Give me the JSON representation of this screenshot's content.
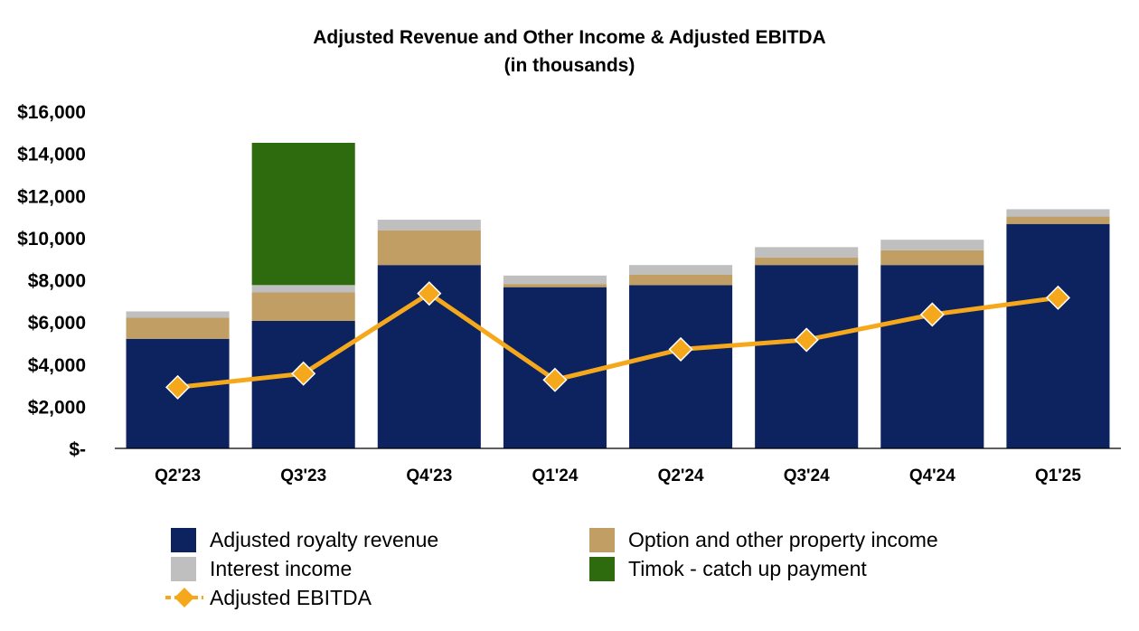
{
  "chart_data": {
    "type": "bar",
    "title": "Adjusted Revenue and Other Income & Adjusted EBITDA",
    "subtitle": "(in thousands)",
    "categories": [
      "Q2'23",
      "Q3'23",
      "Q4'23",
      "Q1'24",
      "Q2'24",
      "Q3'24",
      "Q4'24",
      "Q1'25"
    ],
    "ylim": [
      0,
      16000
    ],
    "yticks": [
      0,
      2000,
      4000,
      6000,
      8000,
      10000,
      12000,
      14000,
      16000
    ],
    "ytick_labels": [
      "$-",
      "$2,000",
      "$4,000",
      "$6,000",
      "$8,000",
      "$10,000",
      "$12,000",
      "$14,000",
      "$16,000"
    ],
    "grid": false,
    "legend_position": "bottom",
    "stacked": true,
    "series": [
      {
        "name": "Adjusted royalty revenue",
        "kind": "bar",
        "color": "#0d2360",
        "values": [
          5200,
          6050,
          8700,
          7650,
          7750,
          8700,
          8700,
          10650
        ]
      },
      {
        "name": "Option and other property income",
        "kind": "bar",
        "color": "#c19e64",
        "values": [
          1000,
          1350,
          1650,
          150,
          500,
          350,
          700,
          350
        ]
      },
      {
        "name": "Interest income",
        "kind": "bar",
        "color": "#bfbfbf",
        "values": [
          300,
          350,
          500,
          400,
          450,
          500,
          500,
          350
        ]
      },
      {
        "name": "Timok - catch up payment",
        "kind": "bar",
        "color": "#2e6b0e",
        "values": [
          0,
          6750,
          0,
          0,
          0,
          0,
          0,
          0
        ]
      },
      {
        "name": "Adjusted EBITDA",
        "kind": "line",
        "color": "#f6a81c",
        "values": [
          2900,
          3550,
          7350,
          3250,
          4700,
          5150,
          6350,
          7150
        ]
      }
    ]
  }
}
